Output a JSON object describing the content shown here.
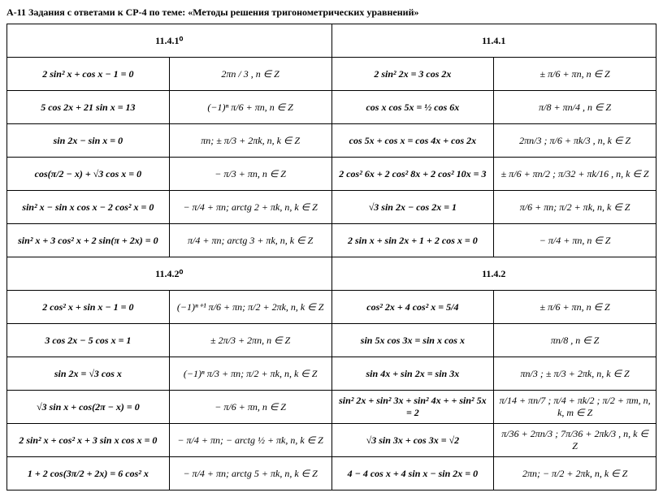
{
  "title": "А-11 Задания с ответами к СР-4 по теме: «Методы решения тригонометрических уравнений»",
  "sections": [
    {
      "left_header": "11.4.1⁰",
      "right_header": "11.4.1",
      "rows": [
        {
          "le": "2 sin² x + cos x − 1 = 0",
          "la": "2πn / 3 , n ∈ Z",
          "re": "2 sin² 2x = 3 cos 2x",
          "ra": "± π/6 + πn, n ∈ Z"
        },
        {
          "le": "5 cos 2x + 21 sin x = 13",
          "la": "(−1)ⁿ π/6 + πn, n ∈ Z",
          "re": "cos x cos 5x = ½ cos 6x",
          "ra": "π/8 + πn/4 , n ∈ Z"
        },
        {
          "le": "sin 2x − sin x = 0",
          "la": "πn; ± π/3 + 2πk, n, k ∈ Z",
          "re": "cos 5x + cos x = cos 4x + cos 2x",
          "ra": "2πn/3 ; π/6 + πk/3 , n, k ∈ Z"
        },
        {
          "le": "cos(π/2 − x) + √3 cos x = 0",
          "la": "− π/3 + πn, n ∈ Z",
          "re": "2 cos² 6x + 2 cos² 8x + 2 cos² 10x = 3",
          "ra": "± π/6 + πn/2 ; π/32 + πk/16 , n, k ∈ Z"
        },
        {
          "le": "sin² x − sin x cos x − 2 cos² x = 0",
          "la": "− π/4 + πn; arctg 2 + πk, n, k ∈ Z",
          "re": "√3 sin 2x − cos 2x = 1",
          "ra": "π/6 + πn; π/2 + πk, n, k ∈ Z"
        },
        {
          "le": "sin² x + 3 cos² x + 2 sin(π + 2x) = 0",
          "la": "π/4 + πn; arctg 3 + πk, n, k ∈ Z",
          "re": "2 sin x + sin 2x + 1 + 2 cos x = 0",
          "ra": "− π/4 + πn, n ∈ Z"
        }
      ]
    },
    {
      "left_header": "11.4.2⁰",
      "right_header": "11.4.2",
      "rows": [
        {
          "le": "2 cos² x + sin x − 1 = 0",
          "la": "(−1)ⁿ⁺¹ π/6 + πn; π/2 + 2πk, n, k ∈ Z",
          "re": "cos² 2x + 4 cos² x = 5/4",
          "ra": "± π/6 + πn, n ∈ Z"
        },
        {
          "le": "3 cos 2x − 5 cos x = 1",
          "la": "± 2π/3 + 2πn, n ∈ Z",
          "re": "sin 5x cos 3x = sin x cos x",
          "ra": "πn/8 , n ∈ Z"
        },
        {
          "le": "sin 2x = √3 cos x",
          "la": "(−1)ⁿ π/3 + πn; π/2 + πk, n, k ∈ Z",
          "re": "sin 4x + sin 2x = sin 3x",
          "ra": "πn/3 ; ± π/3 + 2πk, n, k ∈ Z"
        },
        {
          "le": "√3 sin x + cos(2π − x) = 0",
          "la": "− π/6 + πn, n ∈ Z",
          "re": "sin² 2x + sin² 3x + sin² 4x + + sin² 5x = 2",
          "ra": "π/14 + πn/7 ; π/4 + πk/2 ; π/2 + πm, n, k, m ∈ Z"
        },
        {
          "le": "2 sin² x + cos² x + 3 sin x cos x = 0",
          "la": "− π/4 + πn; − arctg ½ + πk, n, k ∈ Z",
          "re": "√3 sin 3x + cos 3x = √2",
          "ra": "π/36 + 2πn/3 ; 7π/36 + 2πk/3 , n, k ∈ Z"
        },
        {
          "le": "1 + 2 cos(3π/2 + 2x) = 6 cos² x",
          "la": "− π/4 + πn; arctg 5 + πk, n, k ∈ Z",
          "re": "4 − 4 cos x + 4 sin x − sin 2x = 0",
          "ra": "2πn; − π/2 + 2πk, n, k ∈ Z"
        }
      ]
    }
  ]
}
